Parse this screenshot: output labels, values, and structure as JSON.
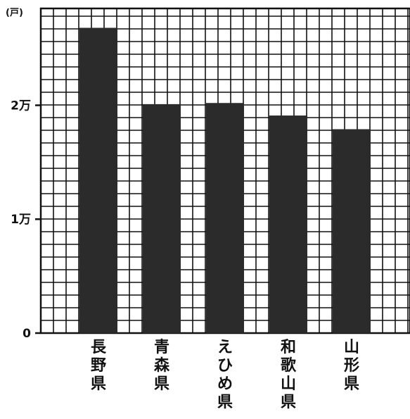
{
  "chart_data": {
    "type": "bar",
    "unit_label": "(戸)",
    "categories": [
      "長野県",
      "青森県",
      "えひめ県",
      "和歌山県",
      "山形県"
    ],
    "values": [
      26800,
      20100,
      20200,
      19100,
      17900
    ],
    "ylim": [
      0,
      28500
    ],
    "yticks": [
      0,
      10000,
      20000
    ],
    "ytick_labels": [
      "0",
      "1万",
      "2万"
    ],
    "grid": true,
    "bar_color": "#2b2b2b",
    "grid_color": "#111111",
    "title": "",
    "xlabel": "",
    "ylabel": ""
  }
}
